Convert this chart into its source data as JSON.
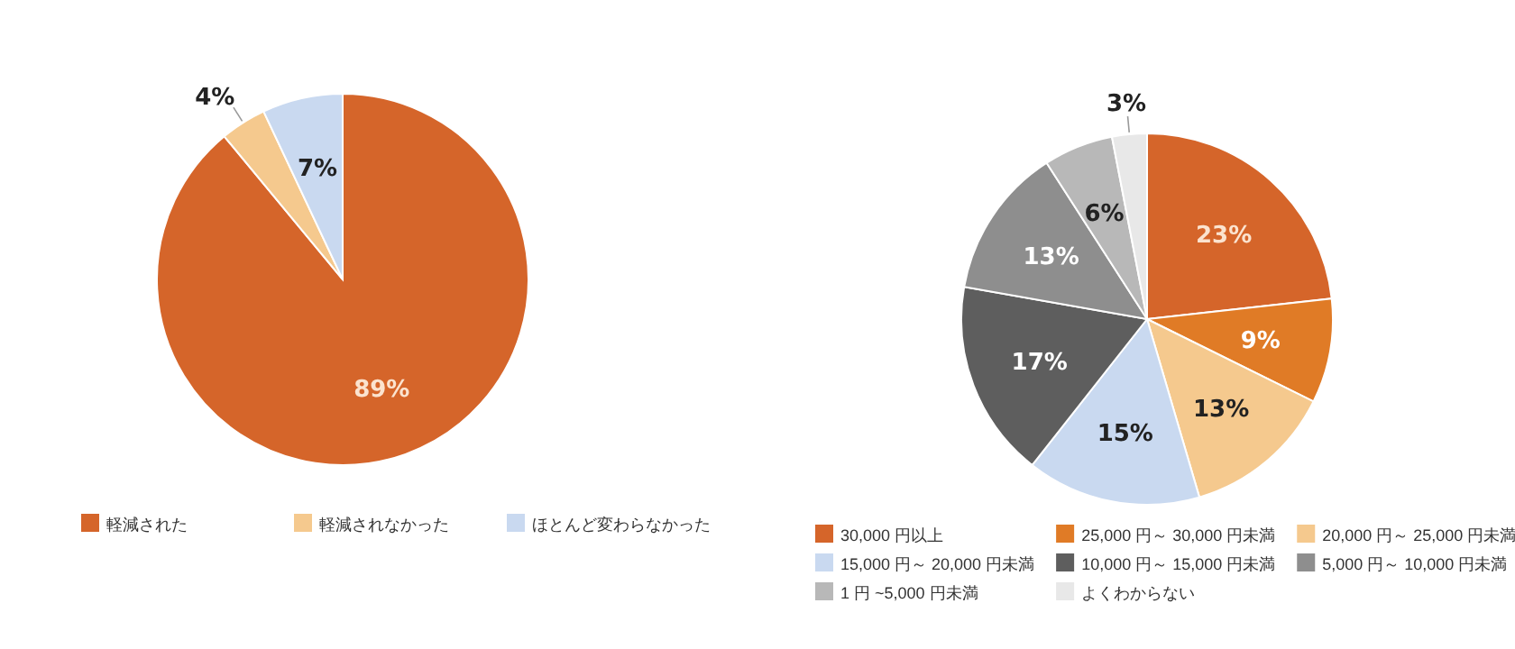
{
  "chart_data": [
    {
      "type": "pie",
      "categories": [
        "軽減された",
        "軽減されなかった",
        "ほとんど変わらなかった"
      ],
      "values": [
        89,
        4,
        7
      ],
      "value_labels": [
        "89%",
        "4%",
        "7%"
      ],
      "colors": [
        "#d5652a",
        "#f5c98e",
        "#c9d9f0"
      ],
      "legend": "bottom"
    },
    {
      "type": "pie",
      "categories": [
        "30,000 円以上",
        "25,000 円～ 30,000 円未満",
        "20,000 円～ 25,000 円未満",
        "15,000 円～ 20,000 円未満",
        "10,000 円～ 15,000 円未満",
        "5,000 円～ 10,000 円未満",
        "1 円 ~5,000 円未満",
        "よくわからない"
      ],
      "values": [
        23,
        9,
        13,
        15,
        17,
        13,
        6,
        3
      ],
      "value_labels": [
        "23%",
        "9%",
        "13%",
        "15%",
        "17%",
        "13%",
        "6%",
        "3%"
      ],
      "colors": [
        "#d5652a",
        "#e07b26",
        "#f5c98e",
        "#c9d9f0",
        "#5e5e5e",
        "#8e8e8e",
        "#b8b8b8",
        "#e8e8e8"
      ],
      "legend": "bottom"
    }
  ]
}
